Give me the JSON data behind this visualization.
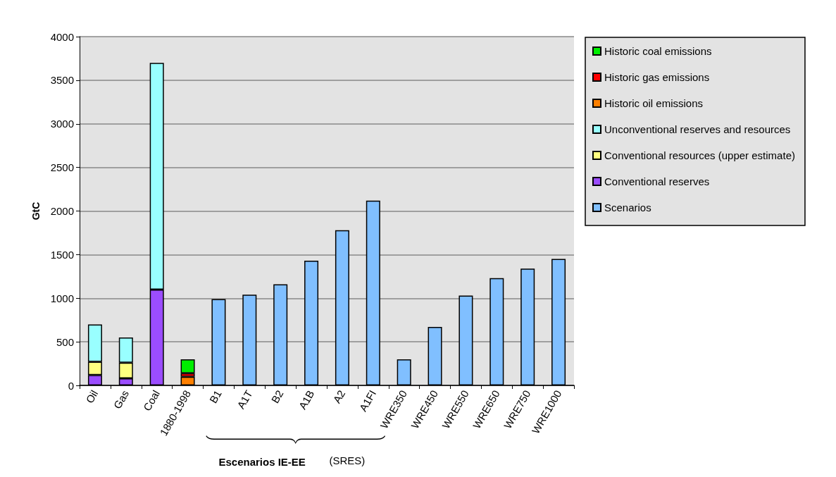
{
  "chart_data": {
    "type": "bar",
    "stacked": true,
    "ylabel": "GtC",
    "categories": [
      "Oil",
      "Gas",
      "Coal",
      "1880-1998",
      "B1",
      "A1T",
      "B2",
      "A1B",
      "A2",
      "A1FI",
      "WRE350",
      "WRE450",
      "WRE550",
      "WRE650",
      "WRE750",
      "WRE1000"
    ],
    "series": [
      {
        "name": "Scenarios",
        "color": "#80bfff",
        "values": [
          null,
          null,
          null,
          null,
          990,
          1040,
          1160,
          1430,
          1780,
          2120,
          300,
          670,
          1030,
          1230,
          1340,
          1450
        ]
      },
      {
        "name": "Conventional reserves",
        "color": "#9b4dff",
        "values": [
          120,
          80,
          1100,
          null,
          null,
          null,
          null,
          null,
          null,
          null,
          null,
          null,
          null,
          null,
          null,
          null
        ]
      },
      {
        "name": "Conventional resources (upper estimate)",
        "color": "#ffff80",
        "values": [
          150,
          180,
          null,
          null,
          null,
          null,
          null,
          null,
          null,
          null,
          null,
          null,
          null,
          null,
          null,
          null
        ]
      },
      {
        "name": "Unconventional reserves and resources",
        "color": "#99ffff",
        "values": [
          430,
          290,
          2600,
          null,
          null,
          null,
          null,
          null,
          null,
          null,
          null,
          null,
          null,
          null,
          null,
          null
        ]
      },
      {
        "name": "Historic oil emissions",
        "color": "#ff8000",
        "values": [
          null,
          null,
          null,
          100,
          null,
          null,
          null,
          null,
          null,
          null,
          null,
          null,
          null,
          null,
          null,
          null
        ]
      },
      {
        "name": "Historic gas emissions",
        "color": "#ff0000",
        "values": [
          null,
          null,
          null,
          40,
          null,
          null,
          null,
          null,
          null,
          null,
          null,
          null,
          null,
          null,
          null,
          null
        ]
      },
      {
        "name": "Historic coal emissions",
        "color": "#00ee00",
        "values": [
          null,
          null,
          null,
          160,
          null,
          null,
          null,
          null,
          null,
          null,
          null,
          null,
          null,
          null,
          null,
          null
        ]
      }
    ],
    "ylim": [
      0,
      4000
    ],
    "yticks": [
      0,
      500,
      1000,
      1500,
      2000,
      2500,
      3000,
      3500,
      4000
    ],
    "grid": "y",
    "legend": "right",
    "annotations": [
      "Escenarios IE-EE",
      "(SRES)"
    ]
  }
}
